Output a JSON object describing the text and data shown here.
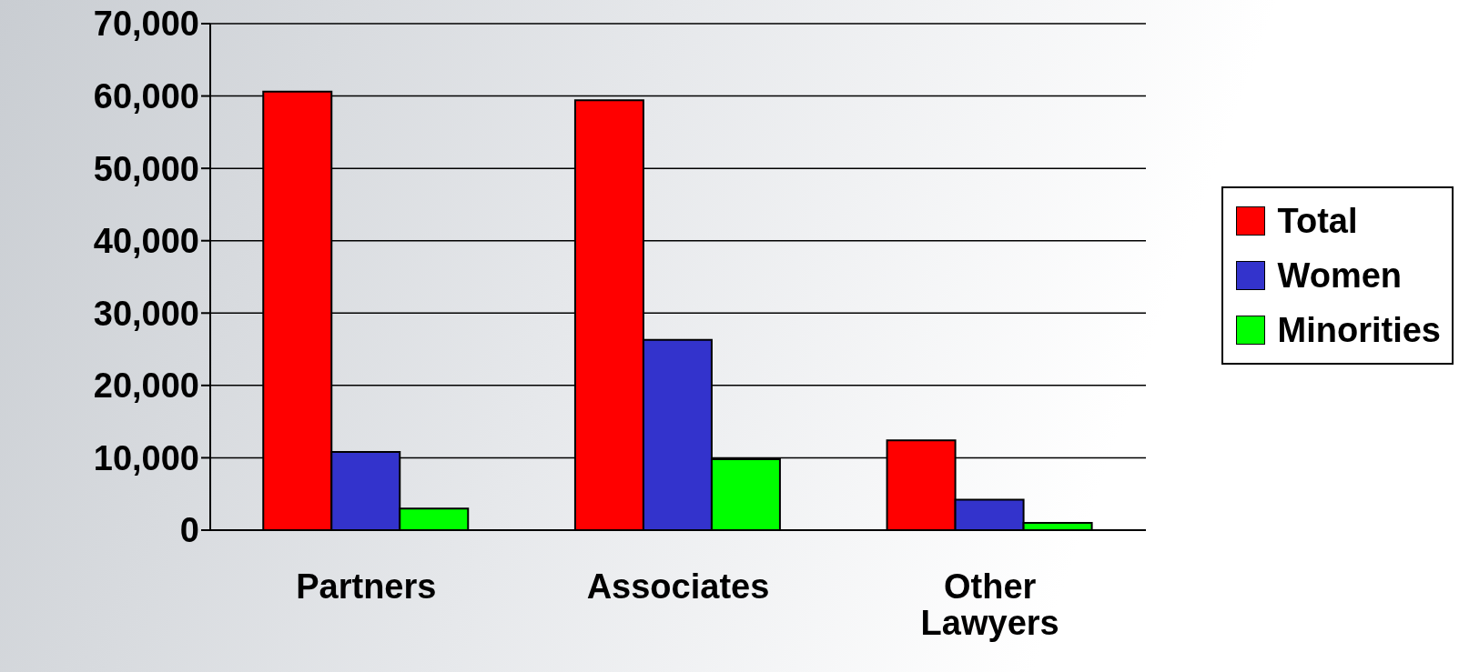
{
  "chart_data": {
    "type": "bar",
    "categories": [
      "Partners",
      "Associates",
      "Other Lawyers"
    ],
    "series": [
      {
        "name": "Total",
        "color": "#ff0000",
        "values": [
          60600,
          59400,
          12400
        ]
      },
      {
        "name": "Women",
        "color": "#3333cc",
        "values": [
          10800,
          26300,
          4200
        ]
      },
      {
        "name": "Minorities",
        "color": "#00ff00",
        "values": [
          3000,
          9800,
          1000
        ]
      }
    ],
    "ylim": [
      0,
      70000
    ],
    "yticks": [
      0,
      {
        "value": 10000,
        "label": "10,000"
      },
      {
        "value": 20000,
        "label": "20,000"
      },
      {
        "value": 30000,
        "label": "30,000"
      },
      {
        "value": 40000,
        "label": "40,000"
      },
      {
        "value": 50000,
        "label": "50,000"
      },
      {
        "value": 60000,
        "label": "60,000"
      },
      {
        "value": 70000,
        "label": "70,000"
      }
    ],
    "grid": "y",
    "legend": "right"
  }
}
